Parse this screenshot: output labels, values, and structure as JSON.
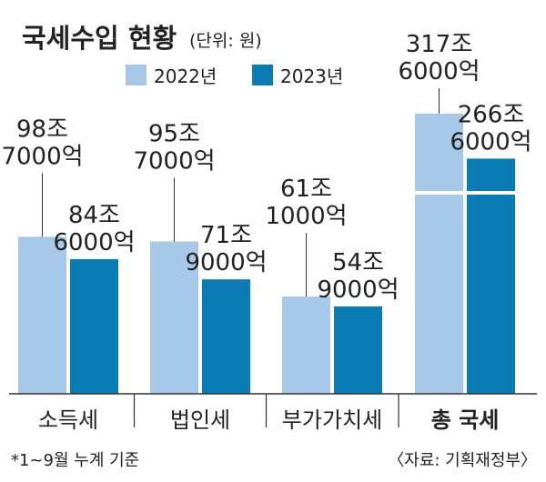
{
  "chart_data": {
    "type": "bar",
    "title": "국세수입 현황",
    "unit": "(단위: 원)",
    "categories": [
      "소득세",
      "법인세",
      "부가가치세",
      "총 국세"
    ],
    "series": [
      {
        "name": "2022년",
        "color": "#a8c8e8",
        "values": [
          98.7,
          95.7,
          61.1,
          317.6
        ],
        "labels": [
          [
            "98조",
            "7000억"
          ],
          [
            "95조",
            "7000억"
          ],
          [
            "61조",
            "1000억"
          ],
          [
            "317조",
            "6000억"
          ]
        ]
      },
      {
        "name": "2023년",
        "color": "#0a7bb3",
        "values": [
          84.6,
          71.9,
          54.9,
          266.6
        ],
        "labels": [
          [
            "84조",
            "6000억"
          ],
          [
            "71조",
            "9000억"
          ],
          [
            "54조",
            "9000억"
          ],
          [
            "266조",
            "6000억"
          ]
        ]
      }
    ],
    "axis_break": {
      "category": "총 국세"
    },
    "legend_position": "top",
    "grid": false
  },
  "footnote": "*1~9월 누계 기준",
  "source": "〈자료: 기획재정부〉"
}
